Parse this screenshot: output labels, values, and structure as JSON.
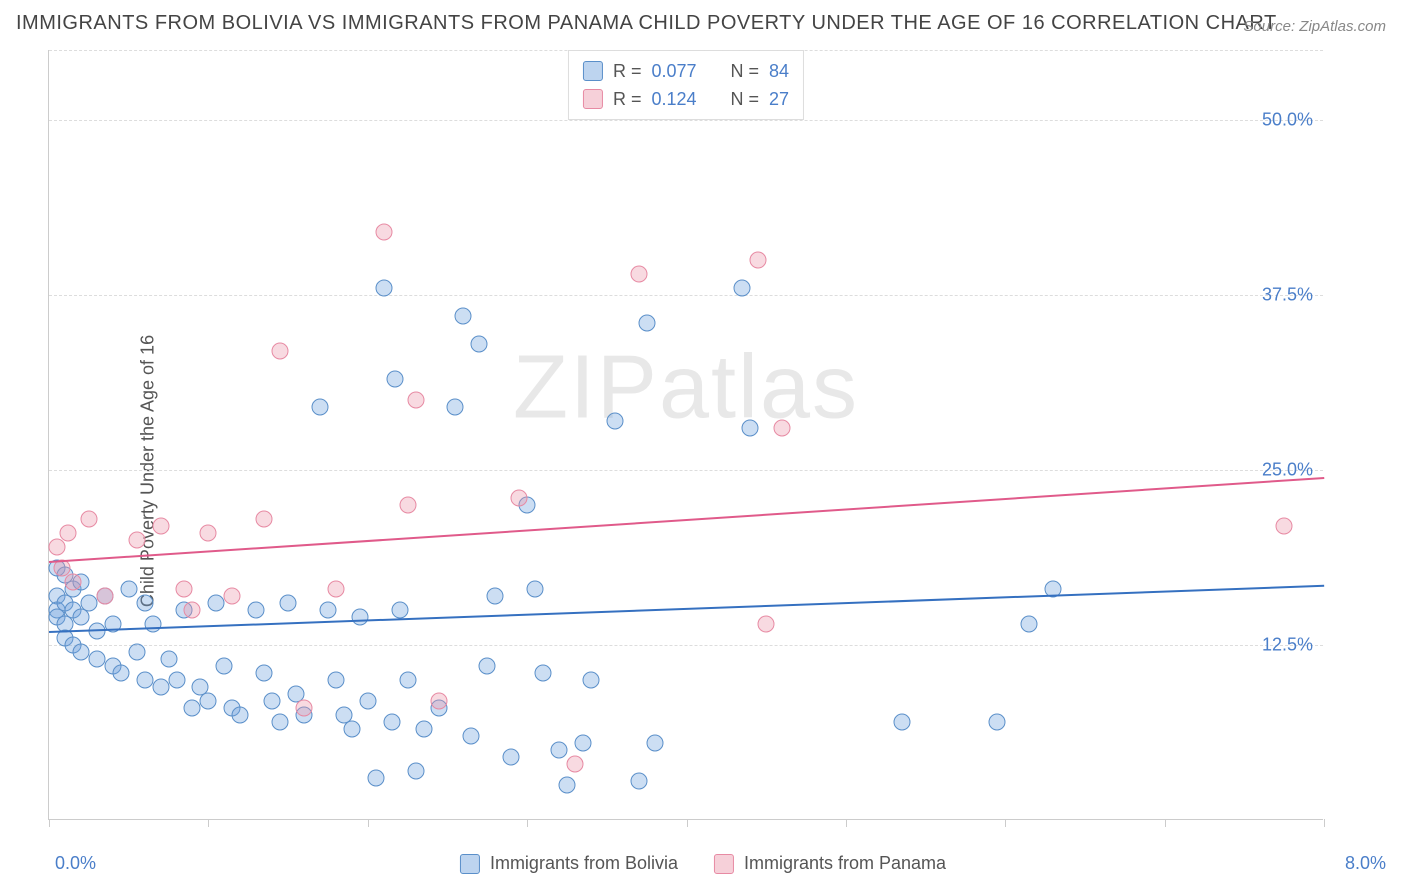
{
  "title": "IMMIGRANTS FROM BOLIVIA VS IMMIGRANTS FROM PANAMA CHILD POVERTY UNDER THE AGE OF 16 CORRELATION CHART",
  "source_label": "Source:",
  "source_value": "ZipAtlas.com",
  "ylabel": "Child Poverty Under the Age of 16",
  "watermark_a": "ZIP",
  "watermark_b": "atlas",
  "chart": {
    "type": "scatter",
    "xlim": [
      0.0,
      8.0
    ],
    "ylim": [
      0.0,
      55.0
    ],
    "x_tick_min_label": "0.0%",
    "x_tick_max_label": "8.0%",
    "y_ticks": [
      12.5,
      25.0,
      37.5,
      50.0
    ],
    "y_tick_labels": [
      "12.5%",
      "25.0%",
      "37.5%",
      "50.0%"
    ],
    "gridline_color": "#dddddd",
    "background_color": "#ffffff",
    "axis_color": "#cccccc",
    "tick_label_color": "#4a7ec9",
    "x_ticks": [
      0,
      1,
      2,
      3,
      4,
      5,
      6,
      7,
      8
    ],
    "series": [
      {
        "name": "Immigrants from Bolivia",
        "color_fill": "rgba(108,160,220,0.35)",
        "color_stroke": "#5a8fc9",
        "trend_color": "#3570c0",
        "trend": {
          "x1": 0.0,
          "y1": 13.5,
          "x2": 8.0,
          "y2": 16.8
        },
        "R": "0.077",
        "N": "84",
        "marker_size": 17,
        "points": [
          [
            0.05,
            18.0
          ],
          [
            0.05,
            16.0
          ],
          [
            0.05,
            15.0
          ],
          [
            0.05,
            14.5
          ],
          [
            0.1,
            17.5
          ],
          [
            0.1,
            15.5
          ],
          [
            0.1,
            14.0
          ],
          [
            0.1,
            13.0
          ],
          [
            0.15,
            16.5
          ],
          [
            0.15,
            15.0
          ],
          [
            0.15,
            12.5
          ],
          [
            0.2,
            17.0
          ],
          [
            0.2,
            14.5
          ],
          [
            0.2,
            12.0
          ],
          [
            0.25,
            15.5
          ],
          [
            0.3,
            13.5
          ],
          [
            0.3,
            11.5
          ],
          [
            0.35,
            16.0
          ],
          [
            0.4,
            14.0
          ],
          [
            0.4,
            11.0
          ],
          [
            0.45,
            10.5
          ],
          [
            0.5,
            16.5
          ],
          [
            0.55,
            12.0
          ],
          [
            0.6,
            15.5
          ],
          [
            0.6,
            10.0
          ],
          [
            0.65,
            14.0
          ],
          [
            0.7,
            9.5
          ],
          [
            0.75,
            11.5
          ],
          [
            0.8,
            10.0
          ],
          [
            0.85,
            15.0
          ],
          [
            0.9,
            8.0
          ],
          [
            0.95,
            9.5
          ],
          [
            1.0,
            8.5
          ],
          [
            1.05,
            15.5
          ],
          [
            1.1,
            11.0
          ],
          [
            1.15,
            8.0
          ],
          [
            1.2,
            7.5
          ],
          [
            1.3,
            15.0
          ],
          [
            1.35,
            10.5
          ],
          [
            1.4,
            8.5
          ],
          [
            1.45,
            7.0
          ],
          [
            1.5,
            15.5
          ],
          [
            1.55,
            9.0
          ],
          [
            1.6,
            7.5
          ],
          [
            1.7,
            29.5
          ],
          [
            1.75,
            15.0
          ],
          [
            1.8,
            10.0
          ],
          [
            1.85,
            7.5
          ],
          [
            1.9,
            6.5
          ],
          [
            1.95,
            14.5
          ],
          [
            2.0,
            8.5
          ],
          [
            2.05,
            3.0
          ],
          [
            2.1,
            38.0
          ],
          [
            2.15,
            7.0
          ],
          [
            2.17,
            31.5
          ],
          [
            2.2,
            15.0
          ],
          [
            2.25,
            10.0
          ],
          [
            2.3,
            3.5
          ],
          [
            2.35,
            6.5
          ],
          [
            2.45,
            8.0
          ],
          [
            2.55,
            29.5
          ],
          [
            2.6,
            36.0
          ],
          [
            2.65,
            6.0
          ],
          [
            2.7,
            34.0
          ],
          [
            2.75,
            11.0
          ],
          [
            2.8,
            16.0
          ],
          [
            2.9,
            4.5
          ],
          [
            3.0,
            22.5
          ],
          [
            3.05,
            16.5
          ],
          [
            3.1,
            10.5
          ],
          [
            3.2,
            5.0
          ],
          [
            3.25,
            2.5
          ],
          [
            3.35,
            5.5
          ],
          [
            3.4,
            10.0
          ],
          [
            3.55,
            28.5
          ],
          [
            3.7,
            2.8
          ],
          [
            3.75,
            35.5
          ],
          [
            3.8,
            5.5
          ],
          [
            4.35,
            38.0
          ],
          [
            4.4,
            28.0
          ],
          [
            5.35,
            7.0
          ],
          [
            5.95,
            7.0
          ],
          [
            6.15,
            14.0
          ],
          [
            6.3,
            16.5
          ]
        ]
      },
      {
        "name": "Immigrants from Panama",
        "color_fill": "rgba(235,150,170,0.35)",
        "color_stroke": "#e78aa3",
        "trend_color": "#e05a8a",
        "trend": {
          "x1": 0.0,
          "y1": 18.5,
          "x2": 8.0,
          "y2": 24.5
        },
        "R": "0.124",
        "N": "27",
        "marker_size": 17,
        "points": [
          [
            0.05,
            19.5
          ],
          [
            0.08,
            18.0
          ],
          [
            0.12,
            20.5
          ],
          [
            0.15,
            17.0
          ],
          [
            0.25,
            21.5
          ],
          [
            0.35,
            16.0
          ],
          [
            0.55,
            20.0
          ],
          [
            0.7,
            21.0
          ],
          [
            0.85,
            16.5
          ],
          [
            0.9,
            15.0
          ],
          [
            1.0,
            20.5
          ],
          [
            1.15,
            16.0
          ],
          [
            1.35,
            21.5
          ],
          [
            1.45,
            33.5
          ],
          [
            1.6,
            8.0
          ],
          [
            1.8,
            16.5
          ],
          [
            2.1,
            42.0
          ],
          [
            2.25,
            22.5
          ],
          [
            2.3,
            30.0
          ],
          [
            2.45,
            8.5
          ],
          [
            2.95,
            23.0
          ],
          [
            3.3,
            4.0
          ],
          [
            3.7,
            39.0
          ],
          [
            4.45,
            40.0
          ],
          [
            4.5,
            14.0
          ],
          [
            4.6,
            28.0
          ],
          [
            7.75,
            21.0
          ]
        ]
      }
    ]
  },
  "legend_top": {
    "R_label": "R =",
    "N_label": "N ="
  },
  "legend_bottom": {
    "items": [
      "Immigrants from Bolivia",
      "Immigrants from Panama"
    ]
  }
}
